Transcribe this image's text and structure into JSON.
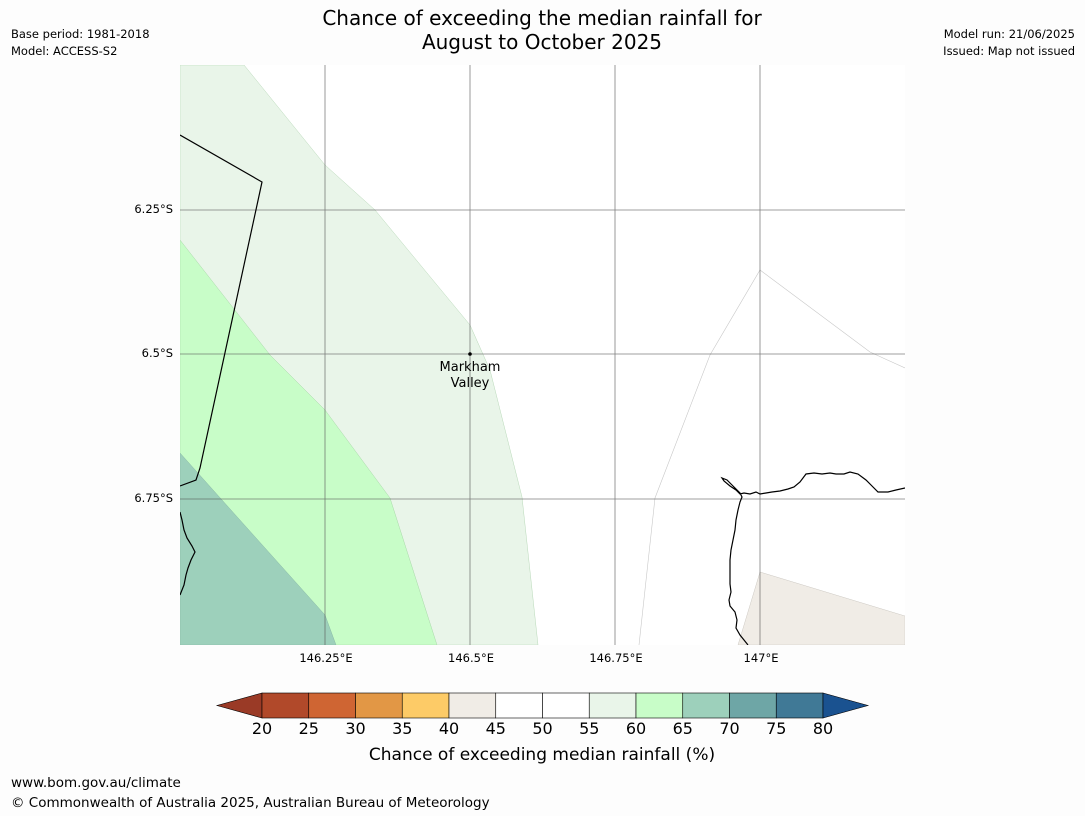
{
  "header": {
    "base_period": "Base period: 1981-2018",
    "model": "Model: ACCESS-S2",
    "model_run": "Model run: 21/06/2025",
    "issued": "Issued: Map not issued",
    "title_line1": "Chance of exceeding the median rainfall for",
    "title_line2": "August to October 2025"
  },
  "map": {
    "lat_labels": [
      "6.25°S",
      "6.5°S",
      "6.75°S"
    ],
    "lon_labels": [
      "146.25°E",
      "146.5°E",
      "146.75°E",
      "147°E"
    ],
    "place": {
      "line1": "Markham",
      "line2": "Valley"
    }
  },
  "colorbar": {
    "ticks": [
      "20",
      "25",
      "30",
      "35",
      "40",
      "45",
      "50",
      "55",
      "60",
      "65",
      "70",
      "75",
      "80"
    ],
    "colors": [
      "#b1492a",
      "#cf6533",
      "#e29745",
      "#fdcb67",
      "#f0ece6",
      "#ffffff",
      "#ffffff",
      "#e9f5e9",
      "#c8fdc8",
      "#9dd0bb",
      "#6ea6a6",
      "#407996"
    ],
    "under_color": "#9a3a26",
    "over_color": "#1a5290",
    "title": "Chance of exceeding median rainfall (%)"
  },
  "footer": {
    "url": "www.bom.gov.au/climate",
    "copyright": "© Commonwealth of Australia 2025, Australian Bureau of Meteorology"
  }
}
